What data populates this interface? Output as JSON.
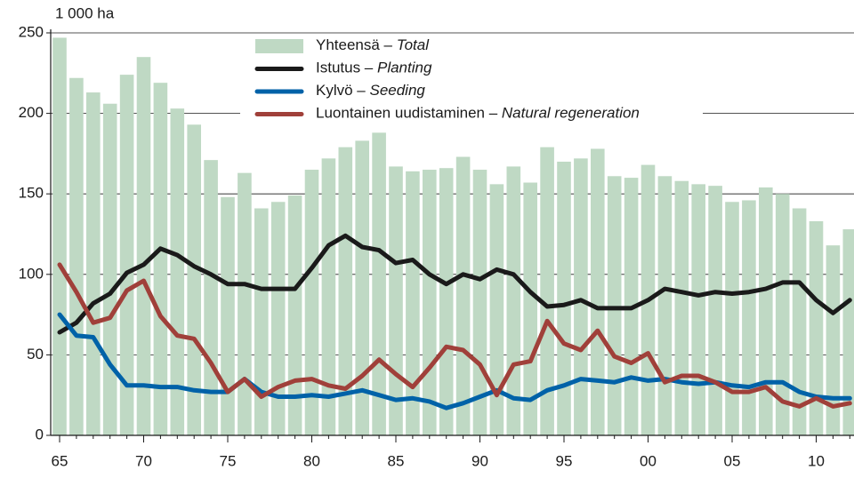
{
  "chart_data": {
    "type": "bar",
    "y_axis_label": "1 000 ha",
    "categories": [
      "65",
      null,
      null,
      null,
      null,
      "70",
      null,
      null,
      null,
      null,
      "75",
      null,
      null,
      null,
      null,
      "80",
      null,
      null,
      null,
      null,
      "85",
      null,
      null,
      null,
      null,
      "90",
      null,
      null,
      null,
      null,
      "95",
      null,
      null,
      null,
      null,
      "00",
      null,
      null,
      null,
      null,
      "05",
      null,
      null,
      null,
      null,
      "10",
      null,
      null
    ],
    "series": [
      {
        "name": "Yhteensä – Total",
        "type": "bar",
        "color": "#bfd9c4",
        "values": [
          247,
          222,
          213,
          206,
          224,
          235,
          219,
          203,
          193,
          171,
          148,
          163,
          141,
          145,
          149,
          165,
          172,
          179,
          183,
          188,
          167,
          164,
          165,
          166,
          173,
          165,
          156,
          167,
          157,
          179,
          170,
          172,
          178,
          161,
          160,
          168,
          161,
          158,
          156,
          155,
          145,
          146,
          154,
          150,
          141,
          133,
          118,
          128
        ]
      },
      {
        "name": "Istutus – Planting",
        "type": "line",
        "color": "#1a1a1a",
        "values": [
          64,
          70,
          82,
          88,
          101,
          106,
          116,
          112,
          105,
          100,
          94,
          94,
          91,
          91,
          91,
          104,
          118,
          124,
          117,
          115,
          107,
          109,
          100,
          94,
          100,
          97,
          103,
          100,
          89,
          80,
          81,
          84,
          79,
          79,
          79,
          84,
          91,
          89,
          87,
          89,
          88,
          89,
          91,
          95,
          95,
          84,
          76,
          84
        ]
      },
      {
        "name": "Kylvö – Seeding",
        "type": "line",
        "color": "#0062a8",
        "values": [
          75,
          62,
          61,
          44,
          31,
          31,
          30,
          30,
          28,
          27,
          27,
          35,
          27,
          24,
          24,
          25,
          24,
          26,
          28,
          25,
          22,
          23,
          21,
          17,
          20,
          24,
          28,
          23,
          22,
          28,
          31,
          35,
          34,
          33,
          36,
          34,
          35,
          33,
          32,
          33,
          31,
          30,
          33,
          33,
          27,
          24,
          23,
          23
        ]
      },
      {
        "name": "Luontainen uudistaminen – Natural regeneration",
        "type": "line",
        "color": "#a0403a",
        "values": [
          106,
          89,
          70,
          73,
          90,
          96,
          74,
          62,
          60,
          45,
          27,
          35,
          24,
          30,
          34,
          35,
          31,
          29,
          37,
          47,
          38,
          30,
          42,
          55,
          53,
          44,
          25,
          44,
          46,
          71,
          57,
          53,
          65,
          49,
          45,
          51,
          33,
          37,
          37,
          33,
          27,
          27,
          30,
          21,
          18,
          23,
          18,
          20
        ]
      }
    ],
    "ylim": [
      0,
      250
    ],
    "yticks": [
      0,
      50,
      100,
      150,
      200,
      250
    ],
    "grid": true,
    "legend": "top"
  }
}
